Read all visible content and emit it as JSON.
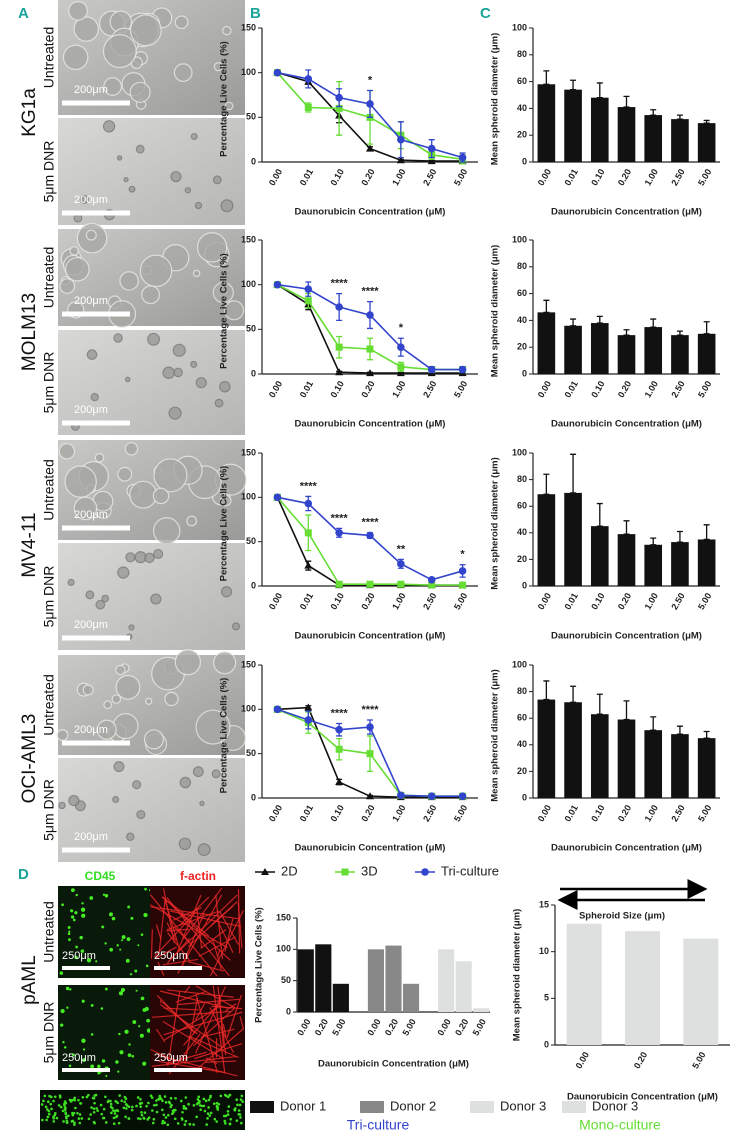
{
  "panel_labels": [
    "A",
    "B",
    "C",
    "D"
  ],
  "cell_lines": [
    {
      "name": "KG1a",
      "untreated": "Untreated",
      "treated": "5μm DNR",
      "scale": "200μm"
    },
    {
      "name": "MOLM13",
      "untreated": "Untreated",
      "treated": "5μm DNR",
      "scale": "200μm"
    },
    {
      "name": "MV4-11",
      "untreated": "Untreated",
      "treated": "5μm DNR",
      "scale": "200μm"
    },
    {
      "name": "OCI-AML3",
      "untreated": "Untreated",
      "treated": "5μm DNR",
      "scale": "200μm"
    }
  ],
  "pAML": {
    "name": "pAML",
    "channels": [
      "CD45",
      "f-actin"
    ],
    "untreated": "Untreated",
    "treated": "5μm DNR",
    "scale": "250μm"
  },
  "size_arrow": "Spheroid Size (μm)",
  "chart_data": [
    {
      "type": "line",
      "ylabel": "Percentage Live Cells (%)",
      "xlabel": "Daunorubicin Concentration (μM)",
      "categories": [
        "0.00",
        "0.01",
        "0.10",
        "0.20",
        "1.00",
        "2.50",
        "5.00"
      ],
      "ylim": [
        0,
        150
      ],
      "yticks": [
        0,
        50,
        100,
        150
      ],
      "series": [
        {
          "name": "2D",
          "color": "#111111",
          "marker": "triangle",
          "values": [
            100,
            90,
            52,
            15,
            2,
            1,
            1
          ],
          "errors": [
            0,
            3,
            8,
            2,
            1,
            1,
            1
          ]
        },
        {
          "name": "3D",
          "color": "#66dd33",
          "marker": "square",
          "values": [
            100,
            61,
            60,
            50,
            30,
            8,
            3
          ],
          "errors": [
            0,
            5,
            30,
            30,
            15,
            5,
            5
          ]
        },
        {
          "name": "Tri-culture",
          "color": "#3344cc",
          "marker": "circle",
          "values": [
            100,
            93,
            72,
            65,
            25,
            15,
            5
          ],
          "errors": [
            0,
            10,
            10,
            15,
            20,
            10,
            5
          ]
        }
      ],
      "annotations": [
        {
          "text": "*",
          "at": "0.20"
        }
      ]
    },
    {
      "type": "line",
      "ylabel": "Percentage Live Cells (%)",
      "xlabel": "Daunorubicin Concentration (μM)",
      "categories": [
        "0.00",
        "0.01",
        "0.10",
        "0.20",
        "1.00",
        "2.50",
        "5.00"
      ],
      "ylim": [
        0,
        150
      ],
      "yticks": [
        0,
        50,
        100,
        150
      ],
      "series": [
        {
          "name": "2D",
          "color": "#111111",
          "marker": "triangle",
          "values": [
            100,
            78,
            2,
            1,
            1,
            1,
            1
          ],
          "errors": [
            0,
            6,
            1,
            1,
            1,
            1,
            1
          ]
        },
        {
          "name": "3D",
          "color": "#66dd33",
          "marker": "square",
          "values": [
            100,
            82,
            30,
            28,
            8,
            5,
            5
          ],
          "errors": [
            0,
            8,
            12,
            12,
            5,
            3,
            3
          ]
        },
        {
          "name": "Tri-culture",
          "color": "#3344cc",
          "marker": "circle",
          "values": [
            100,
            95,
            75,
            66,
            30,
            5,
            5
          ],
          "errors": [
            0,
            8,
            15,
            15,
            10,
            3,
            3
          ]
        }
      ],
      "annotations": [
        {
          "text": "****",
          "at": "0.10"
        },
        {
          "text": "****",
          "at": "0.20"
        },
        {
          "text": "*",
          "at": "1.00"
        }
      ]
    },
    {
      "type": "line",
      "ylabel": "Percentage Live Cells (%)",
      "xlabel": "Daunorubicin Concentration (μM)",
      "categories": [
        "0.00",
        "0.01",
        "0.10",
        "0.20",
        "1.00",
        "2.50",
        "5.00"
      ],
      "ylim": [
        0,
        150
      ],
      "yticks": [
        0,
        50,
        100,
        150
      ],
      "series": [
        {
          "name": "2D",
          "color": "#111111",
          "marker": "triangle",
          "values": [
            100,
            23,
            1,
            1,
            1,
            1,
            1
          ],
          "errors": [
            0,
            5,
            1,
            1,
            1,
            1,
            1
          ]
        },
        {
          "name": "3D",
          "color": "#66dd33",
          "marker": "square",
          "values": [
            100,
            60,
            2,
            2,
            2,
            1,
            1
          ],
          "errors": [
            0,
            20,
            2,
            2,
            2,
            1,
            1
          ]
        },
        {
          "name": "Tri-culture",
          "color": "#3344cc",
          "marker": "circle",
          "values": [
            100,
            93,
            60,
            57,
            25,
            7,
            17
          ],
          "errors": [
            0,
            8,
            5,
            3,
            5,
            2,
            7
          ]
        }
      ],
      "annotations": [
        {
          "text": "****",
          "at": "0.01"
        },
        {
          "text": "****",
          "at": "0.10"
        },
        {
          "text": "****",
          "at": "0.20"
        },
        {
          "text": "**",
          "at": "1.00"
        },
        {
          "text": "*",
          "at": "5.00"
        }
      ]
    },
    {
      "type": "line",
      "ylabel": "Percentage Live Cells (%)",
      "xlabel": "Daunorubicin Concentration (μM)",
      "categories": [
        "0.00",
        "0.01",
        "0.10",
        "0.20",
        "1.00",
        "2.50",
        "5.00"
      ],
      "ylim": [
        0,
        150
      ],
      "yticks": [
        0,
        50,
        100,
        150
      ],
      "series": [
        {
          "name": "2D",
          "color": "#111111",
          "marker": "triangle",
          "values": [
            100,
            102,
            18,
            2,
            1,
            1,
            1
          ],
          "errors": [
            0,
            2,
            3,
            1,
            1,
            1,
            1
          ]
        },
        {
          "name": "3D",
          "color": "#66dd33",
          "marker": "square",
          "values": [
            100,
            85,
            55,
            50,
            3,
            2,
            2
          ],
          "errors": [
            0,
            12,
            12,
            20,
            2,
            1,
            1
          ]
        },
        {
          "name": "Tri-culture",
          "color": "#3344cc",
          "marker": "circle",
          "values": [
            100,
            88,
            77,
            80,
            3,
            2,
            2
          ],
          "errors": [
            0,
            10,
            7,
            8,
            2,
            1,
            1
          ]
        }
      ],
      "annotations": [
        {
          "text": "****",
          "at": "0.10"
        },
        {
          "text": "****",
          "at": "0.20"
        }
      ]
    },
    {
      "type": "bar",
      "ylabel": "Mean spheroid diameter (μm)",
      "xlabel": "Daunorubicin Concentration (μM)",
      "color": "#111111",
      "categories": [
        "0.00",
        "0.01",
        "0.10",
        "0.20",
        "1.00",
        "2.50",
        "5.00"
      ],
      "ylim": [
        0,
        100
      ],
      "yticks": [
        0,
        20,
        40,
        60,
        80,
        100
      ],
      "values": [
        58,
        54,
        48,
        41,
        35,
        32,
        29
      ],
      "errors": [
        10,
        7,
        11,
        8,
        4,
        3,
        2
      ]
    },
    {
      "type": "bar",
      "ylabel": "Mean spheroid diameter (μm)",
      "xlabel": "Daunorubicin Concentration (μM)",
      "color": "#111111",
      "categories": [
        "0.00",
        "0.01",
        "0.10",
        "0.20",
        "1.00",
        "2.50",
        "5.00"
      ],
      "ylim": [
        0,
        100
      ],
      "yticks": [
        0,
        20,
        40,
        60,
        80,
        100
      ],
      "values": [
        46,
        36,
        38,
        29,
        35,
        29,
        30
      ],
      "errors": [
        9,
        5,
        5,
        4,
        6,
        3,
        9
      ]
    },
    {
      "type": "bar",
      "ylabel": "Mean spheroid diameter (μm)",
      "xlabel": "Daunorubicin Concentration (μM)",
      "color": "#111111",
      "categories": [
        "0.00",
        "0.01",
        "0.10",
        "0.20",
        "1.00",
        "2.50",
        "5.00"
      ],
      "ylim": [
        0,
        100
      ],
      "yticks": [
        0,
        20,
        40,
        60,
        80,
        100
      ],
      "values": [
        69,
        70,
        45,
        39,
        31,
        33,
        35
      ],
      "errors": [
        15,
        29,
        17,
        10,
        5,
        8,
        11
      ]
    },
    {
      "type": "bar",
      "ylabel": "Mean spheroid diameter (μm)",
      "xlabel": "Daunorubicin Concentration (μM)",
      "color": "#111111",
      "categories": [
        "0.00",
        "0.01",
        "0.10",
        "0.20",
        "1.00",
        "2.50",
        "5.00"
      ],
      "ylim": [
        0,
        100
      ],
      "yticks": [
        0,
        20,
        40,
        60,
        80,
        100
      ],
      "values": [
        74,
        72,
        63,
        59,
        51,
        48,
        45
      ],
      "errors": [
        14,
        12,
        15,
        14,
        10,
        6,
        5
      ]
    },
    {
      "type": "bar",
      "ylabel": "Percentage Live Cells (%)",
      "xlabel": "Daunorubicin Concentration (μM)",
      "caption": "Tri-culture",
      "caption_color": "#3344cc",
      "categories": [
        "0.00",
        "0.20",
        "5.00"
      ],
      "ylim": [
        0,
        150
      ],
      "yticks": [
        0,
        50,
        100,
        150
      ],
      "series": [
        {
          "name": "Donor 1",
          "color": "#111111",
          "values": [
            100,
            108,
            45
          ]
        },
        {
          "name": "Donor 2",
          "color": "#888888",
          "values": [
            100,
            106,
            45
          ]
        },
        {
          "name": "Donor 3",
          "color": "#dde0de",
          "values": [
            100,
            81,
            6
          ]
        }
      ]
    },
    {
      "type": "bar",
      "ylabel": "Mean spheroid diameter (μm)",
      "xlabel": "Daunorubicin Concentration (μM)",
      "caption": "Mono-culture",
      "caption_color": "#66dd33",
      "categories": [
        "0.00",
        "0.20",
        "5.00"
      ],
      "ylim": [
        0,
        15
      ],
      "yticks": [
        0,
        5,
        10,
        15
      ],
      "series": [
        {
          "name": "Donor 3",
          "color": "#dde0de",
          "values": [
            13,
            12.2,
            11.4
          ]
        }
      ]
    }
  ]
}
